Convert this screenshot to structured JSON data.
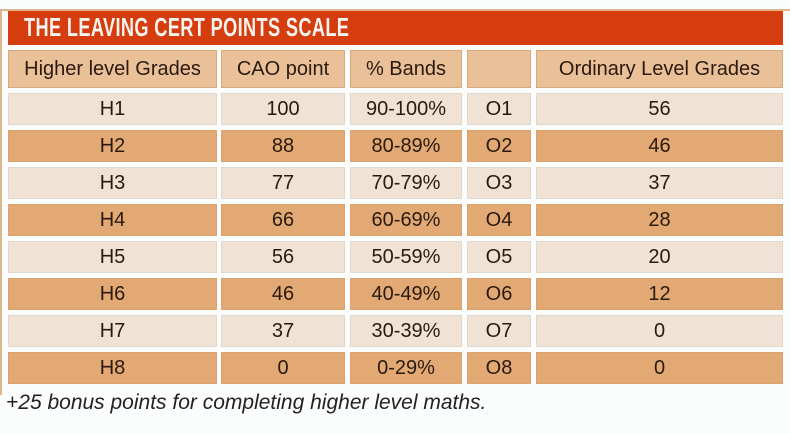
{
  "banner": {
    "title": "THE LEAVING CERT POINTS SCALE",
    "bg_color": "#d53c0e",
    "text_color": "#f7f3ee"
  },
  "table": {
    "headers": [
      "Higher level Grades",
      "CAO point",
      "% Bands",
      "",
      "Ordinary Level Grades"
    ],
    "rows": [
      {
        "higher": "H1",
        "cao": "100",
        "band": "90-100%",
        "ord_grade": "O1",
        "ord_points": "56"
      },
      {
        "higher": "H2",
        "cao": "88",
        "band": "80-89%",
        "ord_grade": "O2",
        "ord_points": "46"
      },
      {
        "higher": "H3",
        "cao": "77",
        "band": "70-79%",
        "ord_grade": "O3",
        "ord_points": "37"
      },
      {
        "higher": "H4",
        "cao": "66",
        "band": "60-69%",
        "ord_grade": "O4",
        "ord_points": "28"
      },
      {
        "higher": "H5",
        "cao": "56",
        "band": "50-59%",
        "ord_grade": "O5",
        "ord_points": "20"
      },
      {
        "higher": "H6",
        "cao": "46",
        "band": "40-49%",
        "ord_grade": "O6",
        "ord_points": "12"
      },
      {
        "higher": "H7",
        "cao": "37",
        "band": "30-39%",
        "ord_grade": "O7",
        "ord_points": "0"
      },
      {
        "higher": "H8",
        "cao": "0",
        "band": "0-29%",
        "ord_grade": "O8",
        "ord_points": "0"
      }
    ],
    "colors": {
      "header_bg": "#e9c098",
      "row_light": "#f0e3d6",
      "row_dark": "#e2a974",
      "cell_text": "#2a1a0f",
      "edge_line": "#dcb48e"
    }
  },
  "footnote": {
    "text": "+25 bonus points for completing higher level maths."
  },
  "chart_data": {
    "type": "table",
    "title": "THE LEAVING CERT POINTS SCALE",
    "columns": [
      "Higher level Grades",
      "CAO point",
      "% Bands",
      "",
      "Ordinary Level Grades"
    ],
    "rows": [
      [
        "H1",
        100,
        "90-100%",
        "O1",
        56
      ],
      [
        "H2",
        88,
        "80-89%",
        "O2",
        46
      ],
      [
        "H3",
        77,
        "70-79%",
        "O3",
        37
      ],
      [
        "H4",
        66,
        "60-69%",
        "O4",
        28
      ],
      [
        "H5",
        56,
        "50-59%",
        "O5",
        20
      ],
      [
        "H6",
        46,
        "40-49%",
        "O6",
        12
      ],
      [
        "H7",
        37,
        "30-39%",
        "O7",
        0
      ],
      [
        "H8",
        0,
        "0-29%",
        "O8",
        0
      ]
    ],
    "footnote": "+25 bonus points for completing higher level maths."
  }
}
